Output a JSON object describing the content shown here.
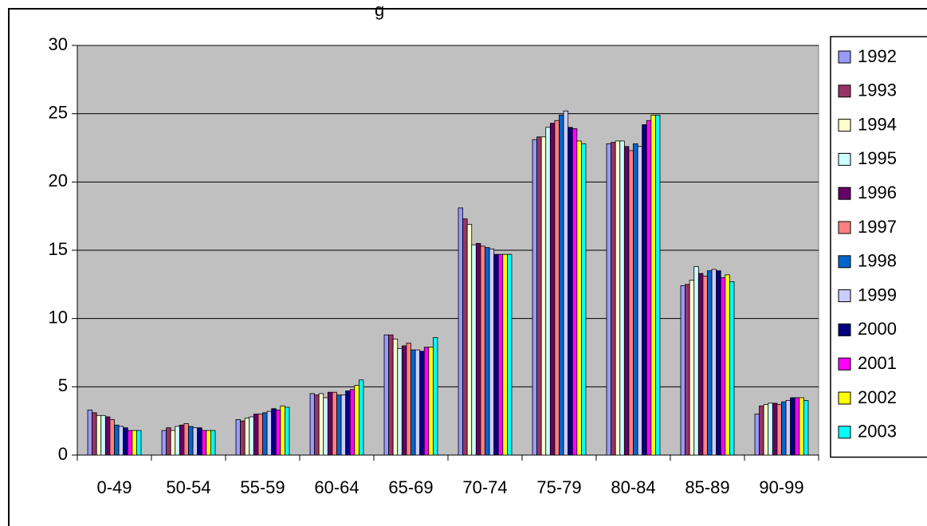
{
  "chart_data": {
    "type": "bar",
    "title_fragment": "g",
    "categories": [
      "0-49",
      "50-54",
      "55-59",
      "60-64",
      "65-69",
      "70-74",
      "75-79",
      "80-84",
      "85-89",
      "90-99"
    ],
    "ylim": [
      0,
      30
    ],
    "yticks": [
      0,
      5,
      10,
      15,
      20,
      25,
      30
    ],
    "grid": true,
    "legend_position": "right",
    "series": [
      {
        "name": "1992",
        "color": "#9999FF",
        "values": [
          3.3,
          1.8,
          2.6,
          4.5,
          8.8,
          18.1,
          23.1,
          22.8,
          12.4,
          3.0
        ]
      },
      {
        "name": "1993",
        "color": "#993366",
        "values": [
          3.1,
          2.0,
          2.5,
          4.4,
          8.8,
          17.3,
          23.3,
          22.9,
          12.5,
          3.6
        ]
      },
      {
        "name": "1994",
        "color": "#FFFFCC",
        "values": [
          2.9,
          1.8,
          2.7,
          4.5,
          8.5,
          16.9,
          23.3,
          23.0,
          12.8,
          3.7
        ]
      },
      {
        "name": "1995",
        "color": "#CCFFFF",
        "values": [
          2.9,
          2.1,
          2.8,
          4.2,
          7.8,
          15.4,
          24.0,
          23.0,
          13.8,
          3.8
        ]
      },
      {
        "name": "1996",
        "color": "#660066",
        "values": [
          2.8,
          2.2,
          3.0,
          4.6,
          8.0,
          15.5,
          24.3,
          22.6,
          13.3,
          3.8
        ]
      },
      {
        "name": "1997",
        "color": "#FF8080",
        "values": [
          2.6,
          2.3,
          3.0,
          4.6,
          8.2,
          15.3,
          24.5,
          22.3,
          13.1,
          3.7
        ]
      },
      {
        "name": "1998",
        "color": "#0066CC",
        "values": [
          2.2,
          2.1,
          3.1,
          4.4,
          7.7,
          15.2,
          24.9,
          22.8,
          13.5,
          3.9
        ]
      },
      {
        "name": "1999",
        "color": "#CCCCFF",
        "values": [
          2.1,
          2.0,
          3.2,
          4.4,
          7.7,
          15.1,
          25.2,
          22.6,
          13.6,
          4.0
        ]
      },
      {
        "name": "2000",
        "color": "#000080",
        "values": [
          2.0,
          2.0,
          3.4,
          4.7,
          7.6,
          14.7,
          24.0,
          24.2,
          13.5,
          4.2
        ]
      },
      {
        "name": "2001",
        "color": "#FF00FF",
        "values": [
          1.8,
          1.8,
          3.3,
          4.8,
          7.9,
          14.7,
          23.9,
          24.5,
          13.0,
          4.2
        ]
      },
      {
        "name": "2002",
        "color": "#FFFF00",
        "values": [
          1.8,
          1.8,
          3.6,
          5.1,
          7.9,
          14.7,
          23.0,
          24.9,
          13.2,
          4.2
        ]
      },
      {
        "name": "2003",
        "color": "#00FFFF",
        "values": [
          1.8,
          1.8,
          3.5,
          5.5,
          8.6,
          14.7,
          22.8,
          24.9,
          12.7,
          4.0
        ]
      }
    ]
  }
}
